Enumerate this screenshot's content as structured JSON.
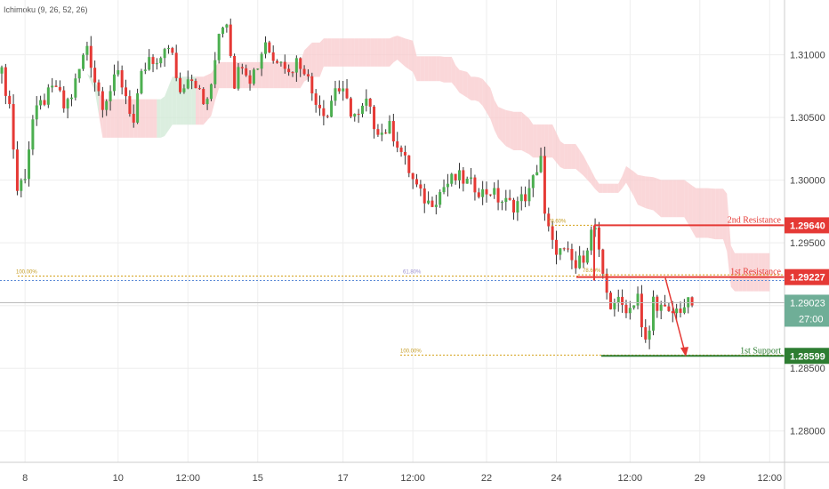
{
  "indicator": {
    "label": "Ichimoku (9, 26, 52, 26)"
  },
  "chart_data": {
    "type": "candlestick",
    "price_axis": {
      "range": [
        1.2775,
        1.3138
      ],
      "ticks": [
        "1.31000",
        "1.30500",
        "1.30000",
        "1.29500",
        "1.29000",
        "1.28500",
        "1.28000"
      ],
      "tick_values": [
        1.31,
        1.305,
        1.3,
        1.295,
        1.29,
        1.285,
        1.28
      ]
    },
    "time_axis": {
      "ticks": [
        "8",
        "10",
        "12:00",
        "15",
        "17",
        "12:00",
        "22",
        "24",
        "12:00",
        "29",
        "12:00"
      ],
      "bar_index": [
        6,
        30,
        48,
        66,
        88,
        106,
        125,
        143,
        162,
        180,
        198
      ]
    },
    "bars_count": 201,
    "price_path": [
      [
        0,
        1.3085
      ],
      [
        2,
        1.306
      ],
      [
        4,
        1.2992
      ],
      [
        6,
        1.3005
      ],
      [
        8,
        1.3048
      ],
      [
        10,
        1.306
      ],
      [
        12,
        1.3068
      ],
      [
        14,
        1.3075
      ],
      [
        16,
        1.3058
      ],
      [
        18,
        1.3068
      ],
      [
        20,
        1.3088
      ],
      [
        22,
        1.3108
      ],
      [
        24,
        1.308
      ],
      [
        26,
        1.3062
      ],
      [
        28,
        1.3072
      ],
      [
        30,
        1.3085
      ],
      [
        32,
        1.3068
      ],
      [
        34,
        1.3045
      ],
      [
        36,
        1.3082
      ],
      [
        38,
        1.3095
      ],
      [
        40,
        1.3088
      ],
      [
        42,
        1.3108
      ],
      [
        44,
        1.3098
      ],
      [
        46,
        1.307
      ],
      [
        48,
        1.3085
      ],
      [
        50,
        1.3078
      ],
      [
        52,
        1.306
      ],
      [
        54,
        1.3072
      ],
      [
        56,
        1.312
      ],
      [
        58,
        1.3128
      ],
      [
        60,
        1.3078
      ],
      [
        62,
        1.3095
      ],
      [
        64,
        1.3082
      ],
      [
        66,
        1.3092
      ],
      [
        68,
        1.3112
      ],
      [
        70,
        1.3095
      ],
      [
        72,
        1.31
      ],
      [
        74,
        1.3085
      ],
      [
        76,
        1.3095
      ],
      [
        78,
        1.309
      ],
      [
        80,
        1.307
      ],
      [
        82,
        1.306
      ],
      [
        84,
        1.3052
      ],
      [
        86,
        1.3075
      ],
      [
        88,
        1.3068
      ],
      [
        90,
        1.3055
      ],
      [
        92,
        1.305
      ],
      [
        94,
        1.3062
      ],
      [
        96,
        1.3045
      ],
      [
        98,
        1.3038
      ],
      [
        100,
        1.3042
      ],
      [
        102,
        1.303
      ],
      [
        104,
        1.3015
      ],
      [
        106,
        1.3
      ],
      [
        108,
        1.2988
      ],
      [
        110,
        1.2982
      ],
      [
        112,
        1.2986
      ],
      [
        114,
        1.2995
      ],
      [
        116,
        1.3
      ],
      [
        118,
        1.3002
      ],
      [
        120,
        1.2998
      ],
      [
        122,
        1.2995
      ],
      [
        124,
        1.299
      ],
      [
        126,
        1.2992
      ],
      [
        128,
        1.2985
      ],
      [
        130,
        1.2982
      ],
      [
        132,
        1.298
      ],
      [
        134,
        1.2985
      ],
      [
        136,
        1.299
      ],
      [
        138,
        1.301
      ],
      [
        139,
        1.302
      ],
      [
        140,
        1.297
      ],
      [
        141,
        1.296
      ],
      [
        142,
        1.2948
      ],
      [
        144,
        1.2943
      ],
      [
        146,
        1.294
      ],
      [
        148,
        1.293
      ],
      [
        150,
        1.294
      ],
      [
        152,
        1.2958
      ],
      [
        153,
        1.2962
      ],
      [
        154,
        1.294
      ],
      [
        155,
        1.292
      ],
      [
        156,
        1.291
      ],
      [
        157,
        1.29
      ],
      [
        158,
        1.2904
      ],
      [
        160,
        1.29
      ],
      [
        162,
        1.2898
      ],
      [
        164,
        1.291
      ],
      [
        165,
        1.288
      ],
      [
        166,
        1.287
      ],
      [
        167,
        1.288
      ],
      [
        168,
        1.2905
      ],
      [
        170,
        1.2898
      ],
      [
        172,
        1.2892
      ],
      [
        174,
        1.2896
      ],
      [
        176,
        1.29
      ],
      [
        178,
        1.2902
      ]
    ],
    "levels": [
      {
        "name": "2nd Resistance",
        "value": 1.2964,
        "price_label": "1.29640",
        "color": "#e53935"
      },
      {
        "name": "1st Resistance",
        "value": 1.29227,
        "price_label": "1.29227",
        "color": "#e53935"
      },
      {
        "name": "1st Support",
        "value": 1.28599,
        "price_label": "1.28599",
        "color": "#2e7d32"
      }
    ],
    "last_price": {
      "value": 1.29023,
      "label": "1.29023",
      "timer": "27:00",
      "color": "#6fae97"
    },
    "fib_annotations": [
      {
        "label": "100.00%",
        "value": 1.29235
      },
      {
        "label": "61.80%",
        "value": 1.29235
      },
      {
        "label": "78.60%",
        "value": 1.2964
      },
      {
        "label": "78.60%",
        "value": 1.29245
      },
      {
        "label": "100.00%",
        "value": 1.28605
      }
    ],
    "projection": {
      "from": 1.2922,
      "to": 1.286,
      "color": "#e53935"
    },
    "colors": {
      "up": "#4caf50",
      "down": "#e53935",
      "cloud_bear": "#f8c9cc",
      "cloud_bull": "#cfe8d4",
      "grid": "#eeeeee"
    }
  }
}
